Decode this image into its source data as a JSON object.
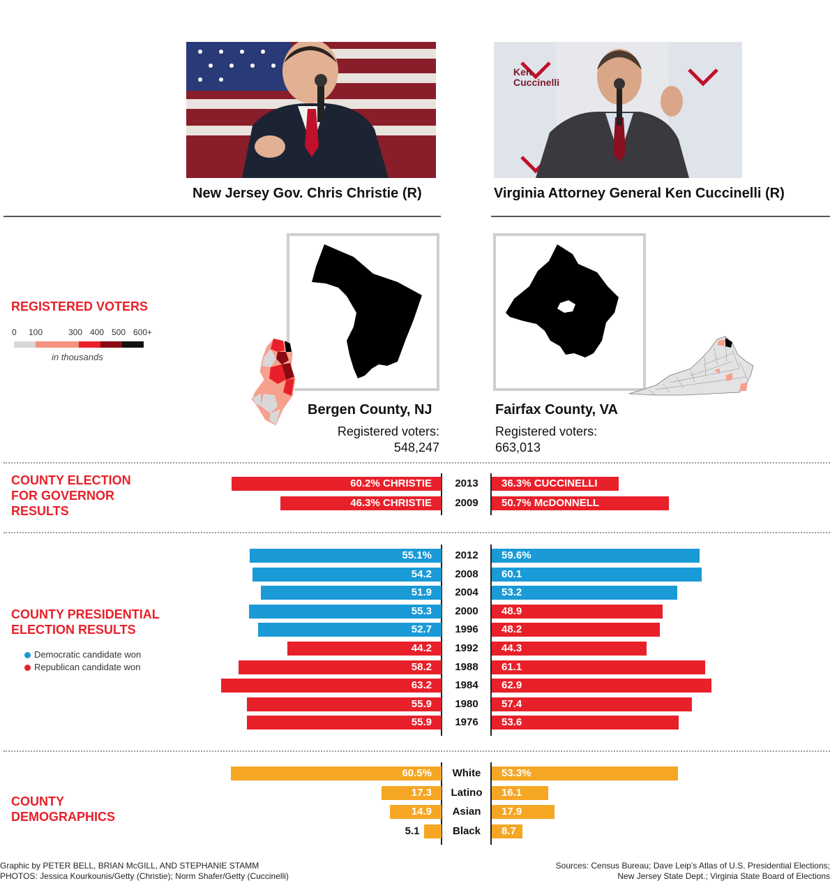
{
  "candidates": {
    "left": {
      "caption": "New Jersey Gov. Chris Christie (R)"
    },
    "right": {
      "caption": "Virginia Attorney General Ken Cuccinelli (R)"
    },
    "right_photo_text": "Ken Cuccinelli"
  },
  "sections": {
    "registered": "REGISTERED VOTERS",
    "governor": [
      "COUNTY ELECTION",
      "FOR GOVERNOR",
      "RESULTS"
    ],
    "presidential": [
      "COUNTY PRESIDENTIAL",
      "ELECTION RESULTS"
    ],
    "demographics": [
      "COUNTY",
      "DEMOGRAPHICS"
    ]
  },
  "legend": {
    "ticks": [
      "0",
      "100",
      "300",
      "400",
      "500",
      "600+"
    ],
    "colors": [
      "#d8d8d8",
      "#f4937f",
      "#e8202a",
      "#8b0a12",
      "#111111"
    ],
    "unit": "in thousands",
    "democratic": "Democratic candidate won",
    "republican": "Republican candidate won"
  },
  "counties": {
    "left": {
      "name": "Bergen County, NJ",
      "reg_label": "Registered voters:",
      "reg_value": "548,247"
    },
    "right": {
      "name": "Fairfax County, VA",
      "reg_label": "Registered voters:",
      "reg_value": "663,013"
    }
  },
  "colors": {
    "red": "#e8202a",
    "blue": "#1a9ad6",
    "orange": "#f5a623"
  },
  "credits": {
    "line1": "Graphic by PETER BELL, BRIAN McGILL, AND STEPHANIE STAMM",
    "line2": "PHOTOS: Jessica Kourkounis/Getty (Christie); Norm Shafer/Getty (Cuccinelli)",
    "sources1": "Sources: Census Bureau; Dave Leip’s Atlas of U.S. Presidential Elections;",
    "sources2": "New Jersey State Dept.; Virginia State Board of Elections"
  },
  "chart_data": [
    {
      "type": "bar",
      "title": "COUNTY ELECTION FOR GOVERNOR RESULTS",
      "categories": [
        "2013",
        "2009"
      ],
      "series": [
        {
          "name": "Bergen County, NJ",
          "values": [
            60.2,
            46.3
          ],
          "labels": [
            "60.2%  CHRISTIE",
            "46.3%  CHRISTIE"
          ],
          "winner": [
            "R",
            "R"
          ]
        },
        {
          "name": "Fairfax County, VA",
          "values": [
            36.3,
            50.7
          ],
          "labels": [
            "36.3% CUCCINELLI",
            "50.7%  McDONNELL"
          ],
          "winner": [
            "R",
            "R"
          ]
        }
      ]
    },
    {
      "type": "bar",
      "title": "COUNTY PRESIDENTIAL ELECTION RESULTS",
      "categories": [
        "2012",
        "2008",
        "2004",
        "2000",
        "1996",
        "1992",
        "1988",
        "1984",
        "1980",
        "1976"
      ],
      "series": [
        {
          "name": "Bergen County, NJ",
          "values": [
            55.1,
            54.2,
            51.9,
            55.3,
            52.7,
            44.2,
            58.2,
            63.2,
            55.9,
            55.9
          ],
          "labels": [
            "55.1%",
            "54.2",
            "51.9",
            "55.3",
            "52.7",
            "44.2",
            "58.2",
            "63.2",
            "55.9",
            "55.9"
          ],
          "winner": [
            "D",
            "D",
            "D",
            "D",
            "D",
            "R",
            "R",
            "R",
            "R",
            "R"
          ]
        },
        {
          "name": "Fairfax County, VA",
          "values": [
            59.6,
            60.1,
            53.2,
            48.9,
            48.2,
            44.3,
            61.1,
            62.9,
            57.4,
            53.6
          ],
          "labels": [
            "59.6%",
            "60.1",
            "53.2",
            "48.9",
            "48.2",
            "44.3",
            "61.1",
            "62.9",
            "57.4",
            "53.6"
          ],
          "winner": [
            "D",
            "D",
            "D",
            "R",
            "R",
            "R",
            "R",
            "R",
            "R",
            "R"
          ]
        }
      ]
    },
    {
      "type": "bar",
      "title": "COUNTY DEMOGRAPHICS",
      "categories": [
        "White",
        "Latino",
        "Asian",
        "Black"
      ],
      "series": [
        {
          "name": "Bergen County, NJ",
          "values": [
            60.5,
            17.3,
            14.9,
            5.1
          ],
          "labels": [
            "60.5%",
            "17.3",
            "14.9",
            "5.1"
          ]
        },
        {
          "name": "Fairfax County, VA",
          "values": [
            53.3,
            16.1,
            17.9,
            8.7
          ],
          "labels": [
            "53.3%",
            "16.1",
            "17.9",
            "8.7"
          ]
        }
      ]
    }
  ]
}
